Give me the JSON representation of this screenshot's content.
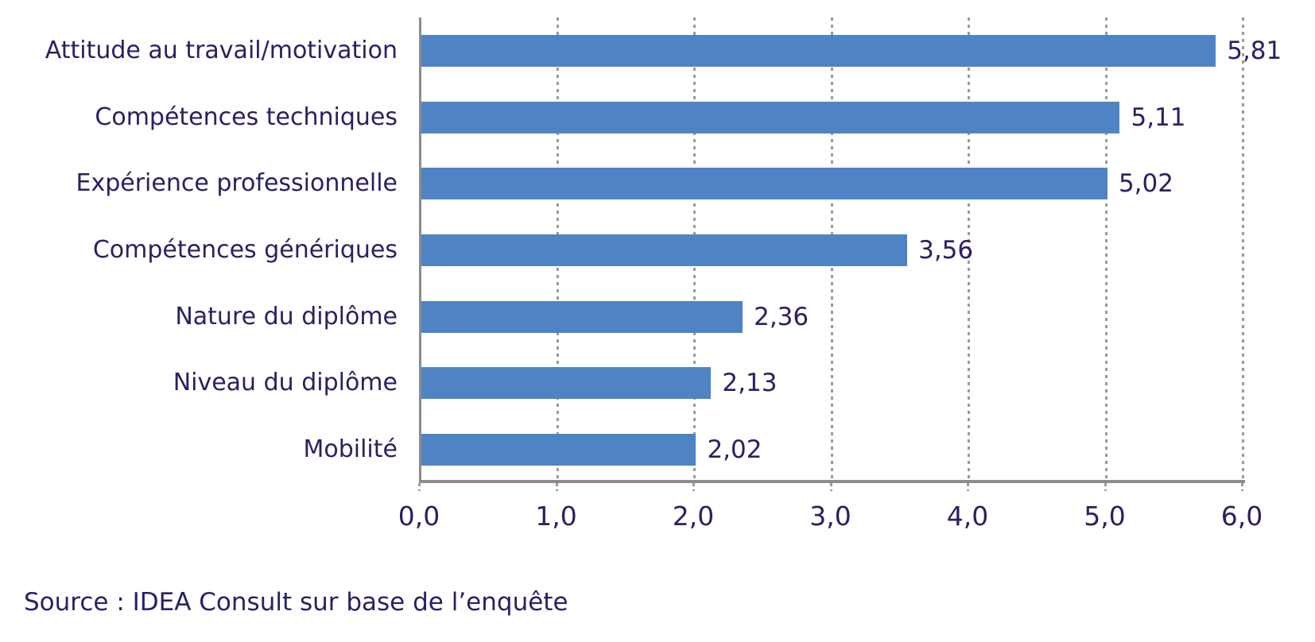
{
  "chart_data": {
    "type": "bar",
    "orientation": "horizontal",
    "title": "",
    "xlabel": "",
    "ylabel": "",
    "categories": [
      "Attitude au travail/motivation",
      "Compétences techniques",
      "Expérience professionnelle",
      "Compétences génériques",
      "Nature du diplôme",
      "Niveau du diplôme",
      "Mobilité"
    ],
    "values": [
      5.81,
      5.11,
      5.02,
      3.56,
      2.36,
      2.13,
      2.02
    ],
    "value_labels": [
      "5,81",
      "5,11",
      "5,02",
      "3,56",
      "2,36",
      "2,13",
      "2,02"
    ],
    "xlim": [
      0,
      6
    ],
    "x_ticks": [
      0,
      1,
      2,
      3,
      4,
      5,
      6
    ],
    "x_tick_labels": [
      "0,0",
      "1,0",
      "2,0",
      "3,0",
      "4,0",
      "5,0",
      "6,0"
    ],
    "grid": "vertical-dotted",
    "legend": "none",
    "colors": {
      "bar": "#4f84c4",
      "text": "#262262",
      "axis_line": "#8c8c8c",
      "gridline": "#9a9a9a",
      "background": "#ffffff"
    }
  },
  "source_note": "Source : IDEA Consult sur base de l’enquête"
}
